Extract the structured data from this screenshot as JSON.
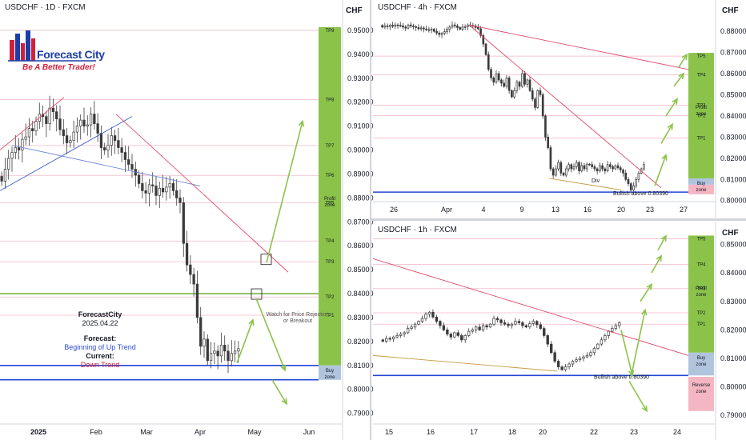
{
  "logo": {
    "title": "Forecast City",
    "subtitle": "Be A Better Trader!"
  },
  "forecast_note": {
    "brand": "ForecastCity",
    "date": "2025.04.22",
    "forecast_label": "Forecast:",
    "forecast_value": "Beginning of Up Trend",
    "current_label": "Current:",
    "current_value": "Down Trend"
  },
  "watch_note": "Watch for Price Rejection or Breakout",
  "colors": {
    "tp_zone": "#8bc34a",
    "buy_zone": "#b0c4de",
    "reverse_zone": "#f4b6c2",
    "trend_red": "#e04a6a",
    "support_blue": "#2346d6",
    "arrow_green": "#8bc34a",
    "candle": "#3a3a3a"
  },
  "chart_data": [
    {
      "panel": "daily",
      "header": "USDCHF · 1D · FXCM",
      "type": "candlestick",
      "unit": "CHF",
      "ylim": [
        0.7872,
        0.956
      ],
      "y_ticks": [
        "0.95000",
        "0.94000",
        "0.93000",
        "0.92000",
        "0.91000",
        "0.90000",
        "0.89000",
        "0.88000",
        "0.87000",
        "0.86000",
        "0.85000",
        "0.84000",
        "0.83000",
        "0.82000",
        "0.81000",
        "0.80000",
        "0.79000"
      ],
      "x_ticks": [
        "2025",
        "Feb",
        "Mar",
        "Apr",
        "May",
        "Jun"
      ],
      "targets": [
        "TP9",
        "TP8",
        "TP7",
        "TP6",
        "TP5",
        "TP4",
        "TP3",
        "TP2",
        "TP1"
      ],
      "target_levels": [
        0.95,
        0.9211,
        0.9019,
        0.8894,
        0.878,
        0.862,
        0.8533,
        0.8386,
        0.831
      ],
      "zone_labels": [
        "Profit zone",
        "Buy zone"
      ],
      "buy_zone": [
        0.804,
        0.81
      ],
      "support_line": 0.81,
      "lower_line": 0.804,
      "tp2_line": 0.84,
      "closes": [
        0.887,
        0.892,
        0.8965,
        0.899,
        0.901,
        0.9,
        0.9045,
        0.9055,
        0.909,
        0.908,
        0.912,
        0.915,
        0.914,
        0.911,
        0.9175,
        0.916,
        0.913,
        0.9085,
        0.906,
        0.903,
        0.904,
        0.9075,
        0.91,
        0.9125,
        0.91,
        0.9105,
        0.915,
        0.911,
        0.907,
        0.901,
        0.9,
        0.902,
        0.906,
        0.904,
        0.901,
        0.899,
        0.896,
        0.894,
        0.892,
        0.8895,
        0.886,
        0.883,
        0.882,
        0.8855,
        0.885,
        0.881,
        0.884,
        0.8825,
        0.8845,
        0.886,
        0.883,
        0.88,
        0.878,
        0.861,
        0.852,
        0.848,
        0.844,
        0.83,
        0.818,
        0.821,
        0.812,
        0.815,
        0.816,
        0.814,
        0.8185,
        0.816,
        0.812,
        0.815,
        0.816,
        0.817
      ]
    },
    {
      "panel": "4h",
      "header": "USDCHF · 4h · FXCM",
      "type": "candlestick",
      "unit": "CHF",
      "ylim": [
        0.798,
        0.888
      ],
      "y_ticks": [
        "0.88000",
        "0.87000",
        "0.86000",
        "0.85000",
        "0.84000",
        "0.83000",
        "0.82000",
        "0.81000",
        "0.80000"
      ],
      "x_ticks": [
        "26",
        "Apr",
        "4",
        "9",
        "13",
        "16",
        "20",
        "23",
        "27"
      ],
      "targets": [
        "TP5",
        "TP4",
        "TP3",
        "TP2",
        "TP1"
      ],
      "target_levels": [
        0.8683,
        0.8594,
        0.845,
        0.8402,
        0.8295
      ],
      "zone_labels": [
        "Profit zone",
        "Buy zone"
      ],
      "buy_zone": [
        0.8075,
        0.8105
      ],
      "support_line": 0.804,
      "annotation": "Bullish above 0.80390",
      "divergence_label": "Div",
      "closes": [
        0.882,
        0.8826,
        0.8822,
        0.8829,
        0.8824,
        0.883,
        0.8828,
        0.8826,
        0.882,
        0.8815,
        0.883,
        0.8825,
        0.8822,
        0.8818,
        0.8812,
        0.8816,
        0.8811,
        0.8808,
        0.8805,
        0.881,
        0.88,
        0.8792,
        0.8785,
        0.879,
        0.8798,
        0.881,
        0.882,
        0.883,
        0.8826,
        0.8818,
        0.881,
        0.882,
        0.8822,
        0.883,
        0.8828,
        0.8826,
        0.8818,
        0.8812,
        0.878,
        0.874,
        0.869,
        0.862,
        0.858,
        0.856,
        0.86,
        0.857,
        0.8555,
        0.854,
        0.858,
        0.852,
        0.849,
        0.852,
        0.856,
        0.854,
        0.86,
        0.855,
        0.857,
        0.852,
        0.848,
        0.844,
        0.852,
        0.85,
        0.84,
        0.83,
        0.825,
        0.815,
        0.812,
        0.815,
        0.818,
        0.813,
        0.812,
        0.815,
        0.817,
        0.815,
        0.816,
        0.818,
        0.814,
        0.8165,
        0.815,
        0.8172,
        0.817,
        0.816,
        0.815,
        0.814,
        0.8165,
        0.815,
        0.814,
        0.817,
        0.816,
        0.815,
        0.8165,
        0.8155,
        0.8145,
        0.813,
        0.81,
        0.808,
        0.805,
        0.807,
        0.81,
        0.813,
        0.815,
        0.817
      ]
    },
    {
      "panel": "1h",
      "header": "USDCHF · 1h · FXCM",
      "type": "candlestick",
      "unit": "CHF",
      "ylim": [
        0.7875,
        0.8555
      ],
      "y_ticks": [
        "0.85000",
        "0.84000",
        "0.83000",
        "0.82000",
        "0.81000",
        "0.80000",
        "0.79000"
      ],
      "x_ticks": [
        "15",
        "16",
        "17",
        "18",
        "20",
        "22",
        "23",
        "24"
      ],
      "targets": [
        "TP5",
        "TP4",
        "TP3",
        "TP2",
        "TP1"
      ],
      "target_levels": [
        0.852,
        0.843,
        0.8345,
        0.826,
        0.822
      ],
      "zone_labels": [
        "Profit zone",
        "Buy zone",
        "Reverse zone"
      ],
      "buy_zone": [
        0.804,
        0.812
      ],
      "reverse_zone": [
        0.7915,
        0.8035
      ],
      "support_line": 0.804,
      "annotation": "Bullish above 0.80390",
      "closes": [
        0.816,
        0.817,
        0.8168,
        0.8175,
        0.818,
        0.8185,
        0.819,
        0.8205,
        0.821,
        0.822,
        0.823,
        0.824,
        0.8255,
        0.8262,
        0.8245,
        0.823,
        0.8215,
        0.82,
        0.8185,
        0.8175,
        0.819,
        0.818,
        0.8165,
        0.818,
        0.8195,
        0.82,
        0.821,
        0.82,
        0.8215,
        0.821,
        0.822,
        0.824,
        0.8235,
        0.8225,
        0.822,
        0.8215,
        0.822,
        0.823,
        0.8225,
        0.8215,
        0.821,
        0.8222,
        0.823,
        0.8218,
        0.8205,
        0.818,
        0.815,
        0.812,
        0.809,
        0.807,
        0.806,
        0.807,
        0.808,
        0.809,
        0.8095,
        0.81,
        0.8105,
        0.811,
        0.812,
        0.8135,
        0.815,
        0.8165,
        0.818,
        0.8195,
        0.8205,
        0.8215,
        0.8225
      ]
    }
  ]
}
